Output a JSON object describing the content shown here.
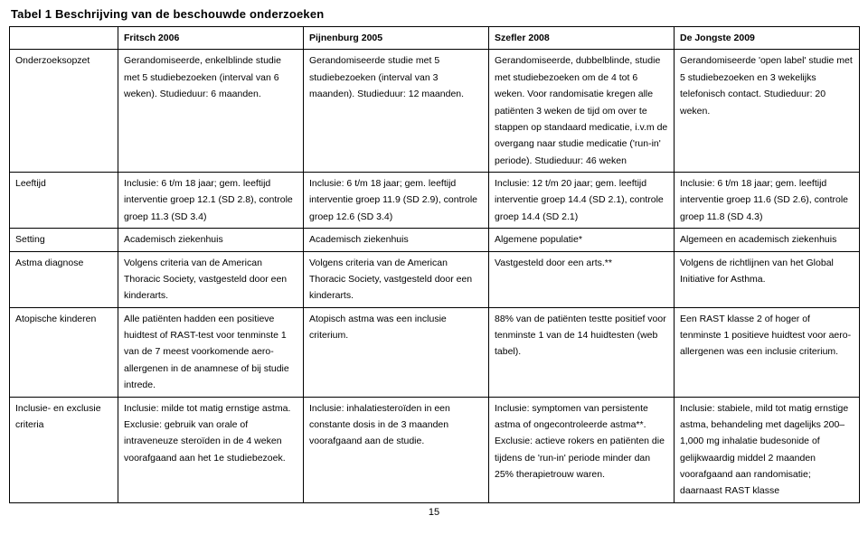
{
  "title": "Tabel 1 Beschrijving van de beschouwde onderzoeken",
  "columns": {
    "label": "",
    "c1": "Fritsch 2006",
    "c2": "Pijnenburg 2005",
    "c3": "Szefler 2008",
    "c4": "De Jongste 2009"
  },
  "rows": {
    "opzet": {
      "label": "Onderzoeksopzet",
      "c1": "Gerandomiseerde, enkelblinde studie met 5 studiebezoeken (interval van 6 weken). Studieduur: 6 maanden.",
      "c2": "Gerandomiseerde studie met 5 studiebezoeken (interval van 3 maanden). Studieduur: 12 maanden.",
      "c3": "Gerandomiseerde, dubbelblinde, studie met studiebezoeken om de 4 tot 6 weken. Voor randomisatie kregen alle patiënten 3 weken de tijd om over te stappen op standaard medicatie, i.v.m de overgang naar studie medicatie ('run-in' periode). Studieduur: 46 weken",
      "c4": "Gerandomiseerde 'open label' studie met 5 studiebezoeken en 3 wekelijks telefonisch contact. Studieduur: 20 weken."
    },
    "leeftijd": {
      "label": "Leeftijd",
      "c1": "Inclusie: 6 t/m 18 jaar; gem. leeftijd interventie groep 12.1 (SD 2.8), controle groep 11.3 (SD 3.4)",
      "c2": "Inclusie: 6 t/m 18 jaar; gem. leeftijd interventie groep 11.9 (SD 2.9), controle groep 12.6 (SD 3.4)",
      "c3": "Inclusie: 12 t/m 20 jaar; gem. leeftijd interventie groep 14.4 (SD 2.1), controle groep 14.4 (SD 2.1)",
      "c4": "Inclusie: 6 t/m 18 jaar; gem. leeftijd interventie groep 11.6 (SD 2.6), controle groep 11.8 (SD 4.3)"
    },
    "setting": {
      "label": "Setting",
      "c1": "Academisch ziekenhuis",
      "c2": "Academisch ziekenhuis",
      "c3": "Algemene populatie*",
      "c4": "Algemeen en academisch ziekenhuis"
    },
    "diagnose": {
      "label": "Astma diagnose",
      "c1": "Volgens criteria van de American Thoracic Society, vastgesteld door een kinderarts.",
      "c2": "Volgens criteria van de American Thoracic Society, vastgesteld door een kinderarts.",
      "c3": "Vastgesteld door een arts.**",
      "c4": "Volgens de richtlijnen van het Global Initiative for Asthma."
    },
    "atopisch": {
      "label": "Atopische kinderen",
      "c1": "Alle patiënten hadden een positieve huidtest of RAST-test voor tenminste 1 van de 7 meest voorkomende aero-allergenen in de anamnese of bij studie intrede.",
      "c2": "Atopisch astma was een inclusie criterium.",
      "c3": "88% van de patiënten testte positief voor tenminste 1 van de 14 huidtesten (web tabel).",
      "c4": "Een RAST klasse 2 of hoger of tenminste 1 positieve huidtest voor aero-allergenen was een inclusie criterium."
    },
    "inclusie": {
      "label": "Inclusie- en exclusie criteria",
      "c1": "Inclusie: milde tot matig ernstige astma. Exclusie: gebruik van orale of intraveneuze steroïden in de 4 weken voorafgaand aan het 1e studiebezoek.",
      "c2": "Inclusie: inhalatiesteroïden in een constante dosis in de 3 maanden voorafgaand aan de studie.",
      "c3": "Inclusie: symptomen van persistente astma of ongecontroleerde astma**. Exclusie: actieve rokers en patiënten die tijdens de 'run-in' periode minder dan 25% therapietrouw waren.",
      "c4": "Inclusie: stabiele, mild tot matig ernstige astma, behandeling met dagelijks 200–1,000 mg inhalatie budesonide of gelijkwaardig middel 2 maanden voorafgaand aan randomisatie; daarnaast RAST klasse"
    }
  },
  "page_number": "15"
}
